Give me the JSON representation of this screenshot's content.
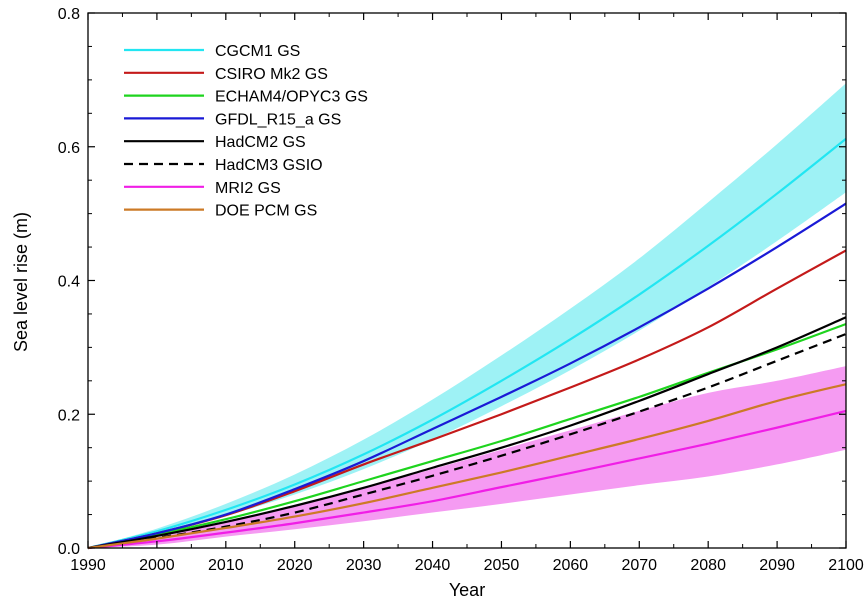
{
  "chart_data": {
    "type": "line",
    "title": "",
    "xlabel": "Year",
    "ylabel": "Sea level rise (m)",
    "xlim": [
      1990,
      2100
    ],
    "ylim": [
      0,
      0.8
    ],
    "xticks": [
      "1990",
      "2000",
      "2010",
      "2020",
      "2030",
      "2040",
      "2050",
      "2060",
      "2070",
      "2080",
      "2090",
      "2100"
    ],
    "yticks": [
      "0.0",
      "0.2",
      "0.4",
      "0.6",
      "0.8"
    ],
    "legend_position": "top-left",
    "grid": false,
    "x": [
      1990,
      2000,
      2010,
      2020,
      2030,
      2040,
      2050,
      2060,
      2070,
      2080,
      2090,
      2100
    ],
    "bands": [
      {
        "color": "#9ef2f5",
        "lower": [
          0,
          0.021,
          0.048,
          0.08,
          0.118,
          0.162,
          0.212,
          0.266,
          0.325,
          0.39,
          0.459,
          0.532
        ],
        "upper": [
          0,
          0.029,
          0.066,
          0.11,
          0.162,
          0.222,
          0.288,
          0.358,
          0.433,
          0.517,
          0.604,
          0.695
        ]
      },
      {
        "color": "#f59bf2",
        "lower": [
          0,
          0.005,
          0.017,
          0.028,
          0.04,
          0.053,
          0.066,
          0.08,
          0.094,
          0.107,
          0.125,
          0.147
        ],
        "upper": [
          0,
          0.016,
          0.039,
          0.063,
          0.09,
          0.118,
          0.147,
          0.176,
          0.205,
          0.232,
          0.25,
          0.272
        ]
      }
    ],
    "series": [
      {
        "name": "CGCM1 GS",
        "color": "#22e6f2",
        "dash": false,
        "values": [
          0,
          0.025,
          0.057,
          0.095,
          0.14,
          0.192,
          0.25,
          0.312,
          0.379,
          0.452,
          0.53,
          0.612
        ]
      },
      {
        "name": "CSIRO Mk2 GS",
        "color": "#c41a1a",
        "dash": false,
        "values": [
          0,
          0.022,
          0.049,
          0.085,
          0.125,
          0.162,
          0.2,
          0.24,
          0.282,
          0.33,
          0.388,
          0.445
        ]
      },
      {
        "name": "ECHAM4/OPYC3 GS",
        "color": "#1ed41e",
        "dash": false,
        "values": [
          0,
          0.02,
          0.043,
          0.07,
          0.1,
          0.13,
          0.16,
          0.193,
          0.226,
          0.262,
          0.297,
          0.335
        ]
      },
      {
        "name": "GFDL_R15_a GS",
        "color": "#1a1ad6",
        "dash": false,
        "values": [
          0,
          0.022,
          0.05,
          0.088,
          0.13,
          0.178,
          0.226,
          0.276,
          0.33,
          0.388,
          0.45,
          0.515
        ]
      },
      {
        "name": "HadCM2 GS",
        "color": "#000000",
        "dash": false,
        "values": [
          0,
          0.018,
          0.039,
          0.063,
          0.09,
          0.12,
          0.15,
          0.183,
          0.22,
          0.26,
          0.3,
          0.345
        ]
      },
      {
        "name": "HadCM3 GSIO",
        "color": "#000000",
        "dash": true,
        "values": [
          0,
          0.015,
          0.032,
          0.053,
          0.08,
          0.108,
          0.138,
          0.17,
          0.204,
          0.24,
          0.28,
          0.32
        ]
      },
      {
        "name": "MRI2 GS",
        "color": "#f01ee6",
        "dash": false,
        "values": [
          0,
          0.01,
          0.023,
          0.037,
          0.053,
          0.07,
          0.091,
          0.112,
          0.134,
          0.156,
          0.18,
          0.205
        ]
      },
      {
        "name": "DOE PCM GS",
        "color": "#cc7a26",
        "dash": false,
        "values": [
          0,
          0.014,
          0.03,
          0.047,
          0.067,
          0.09,
          0.113,
          0.138,
          0.163,
          0.19,
          0.22,
          0.245
        ]
      }
    ]
  }
}
